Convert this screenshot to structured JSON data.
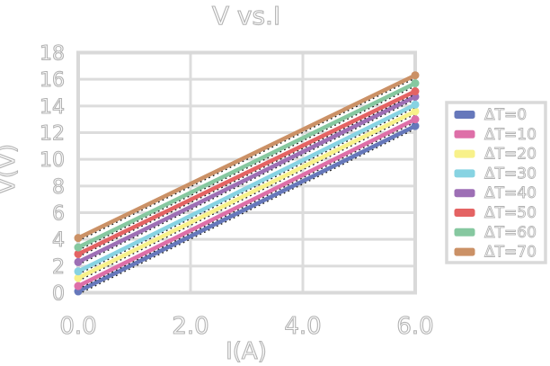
{
  "title": "V vs.I",
  "axes": {
    "xlabel": "I(A)",
    "ylabel": "V(V)",
    "x_ticks": [
      "0.0",
      "2.0",
      "4.0",
      "6.0"
    ],
    "y_ticks": [
      "18",
      "16",
      "14",
      "12",
      "10",
      "8",
      "6",
      "4",
      "2",
      "0"
    ]
  },
  "legend": {
    "position": "right",
    "labels": [
      "ΔT=0",
      "ΔT=10",
      "ΔT=20",
      "ΔT=30",
      "ΔT=40",
      "ΔT=50",
      "ΔT=60",
      "ΔT=70"
    ]
  },
  "colors": {
    "grid": "#dcdcdc",
    "frame": "#d9d9d9",
    "text_outline": "#b3b3b3",
    "fit_line": "#222222",
    "background": "#ffffff"
  },
  "chart_data": {
    "type": "line",
    "title": "V vs.I",
    "xlabel": "I(A)",
    "ylabel": "V(V)",
    "xlim": [
      0,
      6
    ],
    "ylim": [
      0,
      18
    ],
    "x_tick_step": 2,
    "y_tick_step": 2,
    "grid": true,
    "legend_position": "right",
    "x": [
      0,
      6
    ],
    "series": [
      {
        "name": "ΔT=0",
        "color": "#6678bb",
        "values": [
          0.1,
          12.5
        ]
      },
      {
        "name": "ΔT=10",
        "color": "#de6fa8",
        "values": [
          0.5,
          13.0
        ]
      },
      {
        "name": "ΔT=20",
        "color": "#f8f18a",
        "values": [
          1.1,
          13.6
        ]
      },
      {
        "name": "ΔT=30",
        "color": "#87d3e2",
        "values": [
          1.6,
          14.1
        ]
      },
      {
        "name": "ΔT=40",
        "color": "#9d6fb5",
        "values": [
          2.3,
          14.7
        ]
      },
      {
        "name": "ΔT=50",
        "color": "#e46363",
        "values": [
          2.9,
          15.1
        ]
      },
      {
        "name": "ΔT=60",
        "color": "#86c8a0",
        "values": [
          3.4,
          15.7
        ]
      },
      {
        "name": "ΔT=70",
        "color": "#cb9166",
        "values": [
          4.1,
          16.3
        ]
      }
    ],
    "annotations": "each colored series has a black dotted fit line running along it",
    "marker": "circle at first and last data point of each series"
  }
}
